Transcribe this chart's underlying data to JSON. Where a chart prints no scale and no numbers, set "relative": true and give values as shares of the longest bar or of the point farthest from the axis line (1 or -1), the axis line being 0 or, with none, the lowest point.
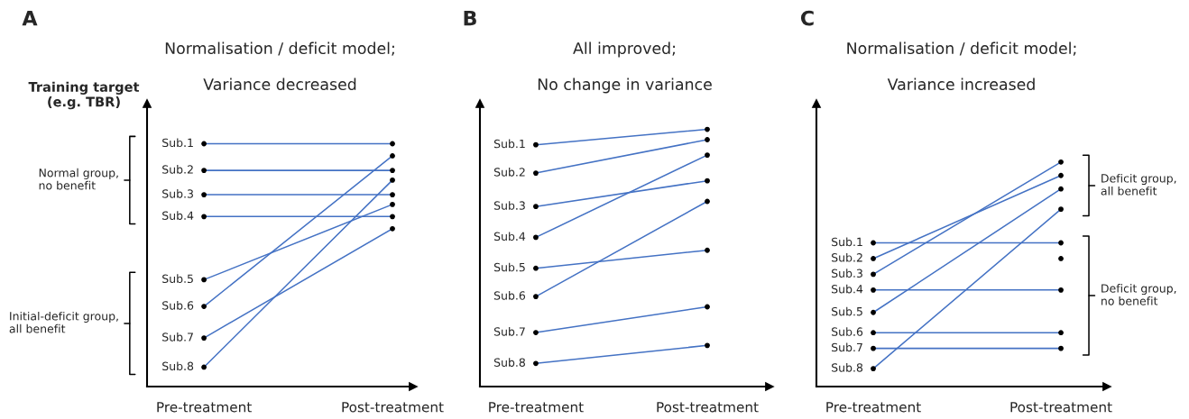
{
  "chart_data": [
    {
      "type": "line",
      "title": "Normalisation / deficit model;",
      "subtitle": "Variance decreased",
      "ylabel": "Training target\n(e.g. TBR)",
      "relative": true,
      "marker": "circle",
      "line_style": "solid",
      "legend": false,
      "tick_labels": "x",
      "categories": [
        "Pre-treatment",
        "Post-treatment"
      ],
      "annotations": [
        "A",
        "Normal group,\nno benefit",
        "Initial-deficit group,\nall benefit"
      ],
      "series": [
        {
          "name": "Sub.1",
          "color": "#4472c4",
          "values": [
            1.0,
            1.0
          ]
        },
        {
          "name": "Sub.2",
          "color": "#4472c4",
          "values": [
            0.89,
            0.89
          ]
        },
        {
          "name": "Sub.3",
          "color": "#4472c4",
          "values": [
            0.79,
            0.79
          ]
        },
        {
          "name": "Sub.4",
          "color": "#4472c4",
          "values": [
            0.7,
            0.7
          ]
        },
        {
          "name": "Sub.5",
          "color": "#4472c4",
          "values": [
            0.44,
            0.75
          ]
        },
        {
          "name": "Sub.6",
          "color": "#4472c4",
          "values": [
            0.33,
            0.95
          ]
        },
        {
          "name": "Sub.7",
          "color": "#4472c4",
          "values": [
            0.2,
            0.65
          ]
        },
        {
          "name": "Sub.8",
          "color": "#4472c4",
          "values": [
            0.08,
            0.85
          ]
        }
      ]
    },
    {
      "type": "line",
      "title": "All improved;",
      "subtitle": "No change in variance",
      "relative": true,
      "marker": "circle",
      "line_style": "solid",
      "legend": false,
      "tick_labels": "x",
      "categories": [
        "Pre-treatment",
        "Post-treatment"
      ],
      "annotations": [
        "B"
      ],
      "series": [
        {
          "name": "Sub.1",
          "color": "#4472c4",
          "values": [
            0.94,
            1.0
          ]
        },
        {
          "name": "Sub.2",
          "color": "#4472c4",
          "values": [
            0.83,
            0.96
          ]
        },
        {
          "name": "Sub.3",
          "color": "#4472c4",
          "values": [
            0.7,
            0.8
          ]
        },
        {
          "name": "Sub.4",
          "color": "#4472c4",
          "values": [
            0.58,
            0.9
          ]
        },
        {
          "name": "Sub.5",
          "color": "#4472c4",
          "values": [
            0.46,
            0.53
          ]
        },
        {
          "name": "Sub.6",
          "color": "#4472c4",
          "values": [
            0.35,
            0.72
          ]
        },
        {
          "name": "Sub.7",
          "color": "#4472c4",
          "values": [
            0.21,
            0.31
          ]
        },
        {
          "name": "Sub.8",
          "color": "#4472c4",
          "values": [
            0.09,
            0.16
          ]
        }
      ]
    },
    {
      "type": "line",
      "title": "Normalisation / deficit model;",
      "subtitle": "Variance increased",
      "relative": true,
      "marker": "circle",
      "line_style": "solid",
      "legend": false,
      "tick_labels": "x",
      "categories": [
        "Pre-treatment",
        "Post-treatment"
      ],
      "annotations": [
        "C",
        "Deficit group,\nall benefit",
        "Deficit group,\nno benefit"
      ],
      "series": [
        {
          "name": "Sub.1",
          "color": "#4472c4",
          "values": [
            0.64,
            0.64
          ]
        },
        {
          "name": "Sub.2",
          "color": "#4472c4",
          "values": [
            0.57,
            0.94
          ]
        },
        {
          "name": "Sub.3",
          "color": "#4472c4",
          "values": [
            0.5,
            1.0
          ]
        },
        {
          "name": "Sub.4",
          "color": "#4472c4",
          "values": [
            0.43,
            0.43
          ]
        },
        {
          "name": "Sub.5",
          "color": "#4472c4",
          "values": [
            0.33,
            0.88
          ]
        },
        {
          "name": "Sub.6",
          "color": "#4472c4",
          "values": [
            0.24,
            0.24
          ]
        },
        {
          "name": "Sub.7",
          "color": "#4472c4",
          "values": [
            0.17,
            0.17
          ]
        },
        {
          "name": "Sub.8",
          "color": "#4472c4",
          "values": [
            0.08,
            0.79
          ]
        },
        {
          "values": [
            null,
            0.57
          ]
        }
      ]
    }
  ]
}
